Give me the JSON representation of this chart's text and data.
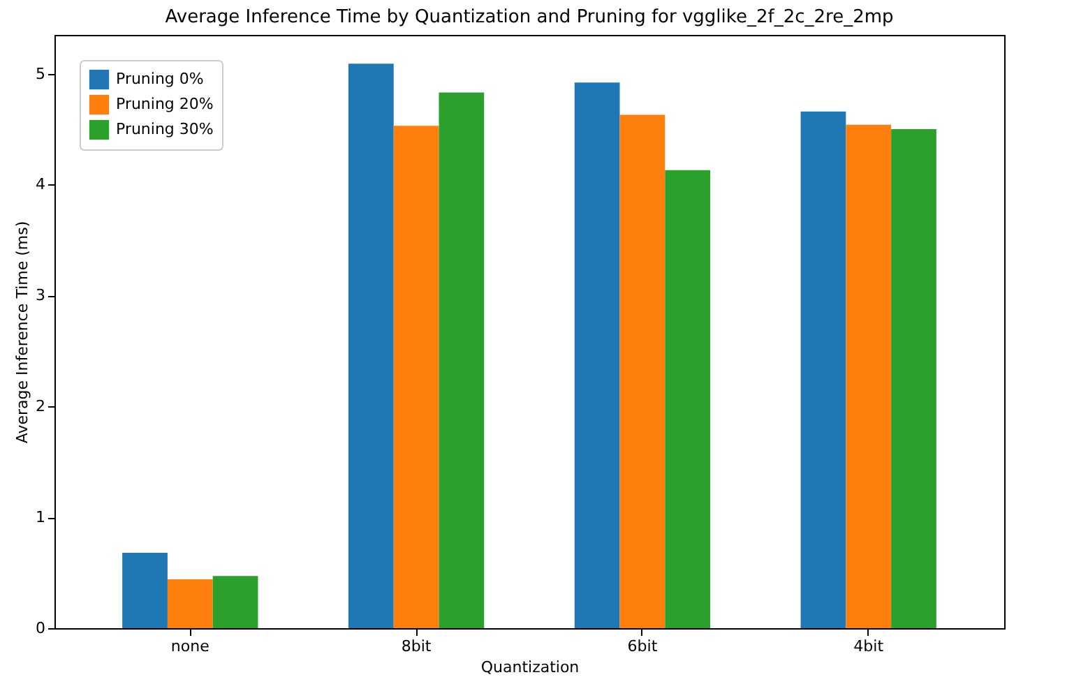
{
  "chart_data": {
    "type": "bar",
    "title": "Average Inference Time by Quantization and Pruning for vgglike_2f_2c_2re_2mp",
    "xlabel": "Quantization",
    "ylabel": "Average Inference Time (ms)",
    "categories": [
      "none",
      "8bit",
      "6bit",
      "4bit"
    ],
    "series": [
      {
        "name": "Pruning 0%",
        "color": "#1f77b4",
        "values": [
          0.68,
          5.09,
          4.92,
          4.66
        ]
      },
      {
        "name": "Pruning 20%",
        "color": "#ff7f0e",
        "values": [
          0.44,
          4.53,
          4.63,
          4.54
        ]
      },
      {
        "name": "Pruning 30%",
        "color": "#2ca02c",
        "values": [
          0.47,
          4.83,
          4.13,
          4.5
        ]
      }
    ],
    "ylim": [
      0,
      5.35
    ],
    "yticks": [
      0,
      1,
      2,
      3,
      4,
      5
    ],
    "grid": false,
    "legend": "top left"
  }
}
